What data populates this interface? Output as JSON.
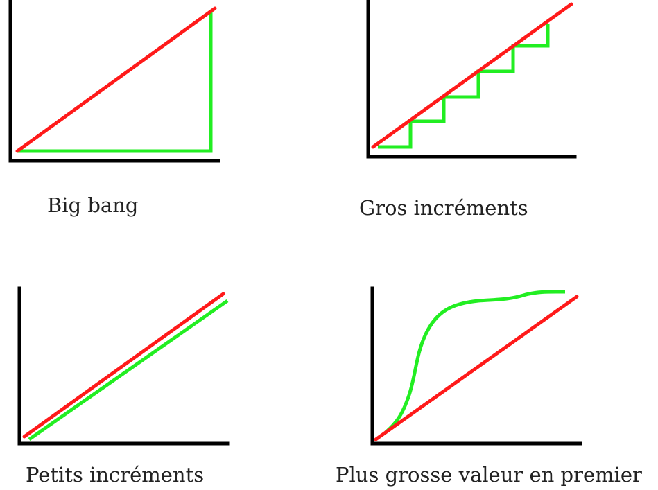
{
  "panels": [
    {
      "caption": "Big bang"
    },
    {
      "caption": "Gros incréments"
    },
    {
      "caption": "Petits incréments"
    },
    {
      "caption": "Plus grosse valeur en premier"
    }
  ]
}
